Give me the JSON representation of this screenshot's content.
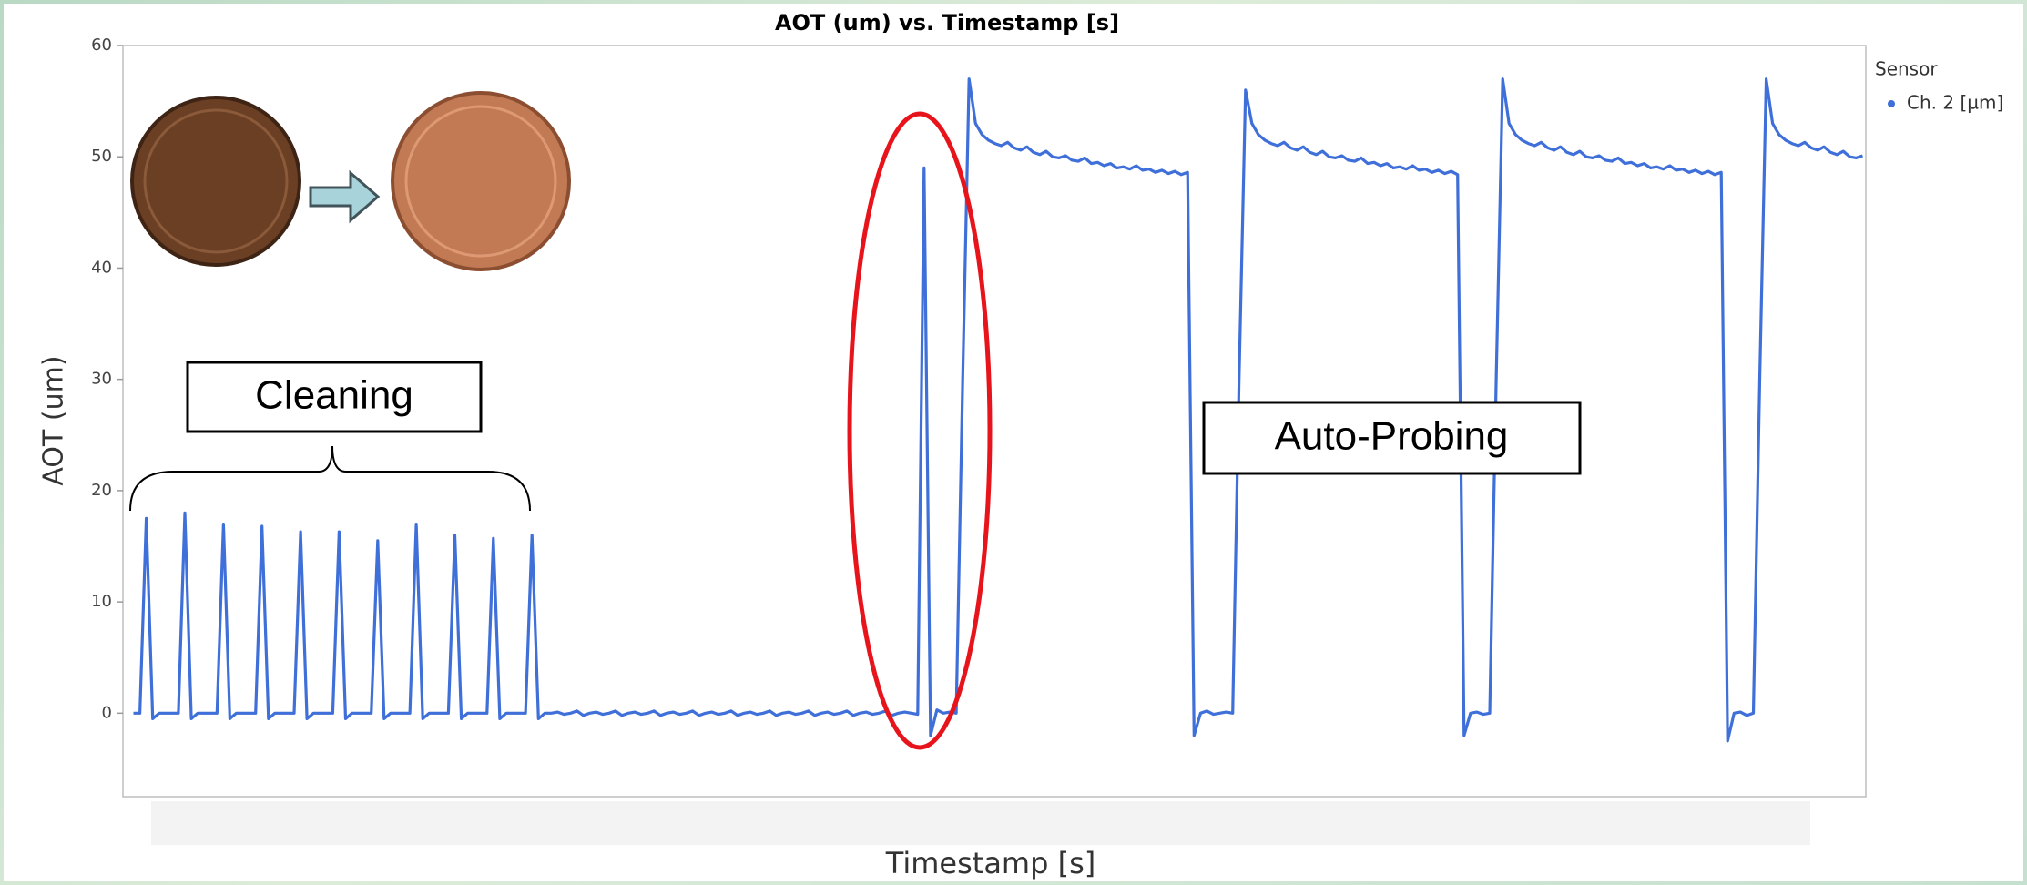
{
  "chart_data": {
    "type": "line",
    "title": "AOT (um) vs. Timestamp [s]",
    "x_label": "Timestamp [s]",
    "y_label": "AOT (um)",
    "legend_title": "Sensor",
    "legend": "top-right",
    "grid": false,
    "ylim": [
      -7.5,
      60
    ],
    "yticks": [
      0,
      10,
      20,
      30,
      40,
      50,
      60
    ],
    "annotations": [
      "Cleaning",
      "Auto-Probing"
    ],
    "series": [
      {
        "name": "Ch. 2 [µm]",
        "color": "#3f6fd8",
        "values": [
          0,
          0,
          17.5,
          -0.5,
          0,
          0,
          0,
          0,
          18,
          -0.5,
          0,
          0,
          0,
          0,
          17,
          -0.5,
          0,
          0,
          0,
          0,
          16.8,
          -0.5,
          0,
          0,
          0,
          0,
          16.3,
          -0.5,
          0,
          0,
          0,
          0,
          16.3,
          -0.5,
          0,
          0,
          0,
          0,
          15.5,
          -0.5,
          0,
          0,
          0,
          0,
          17,
          -0.5,
          0,
          0,
          0,
          0,
          16,
          -0.5,
          0,
          0,
          0,
          0,
          15.7,
          -0.5,
          0,
          0,
          0,
          0,
          16,
          -0.5,
          0,
          0,
          0.1,
          -0.1,
          0,
          0.2,
          -0.2,
          0,
          0.1,
          -0.1,
          0,
          0.2,
          -0.2,
          0,
          0.1,
          -0.1,
          0,
          0.2,
          -0.2,
          0,
          0.1,
          -0.1,
          0,
          0.2,
          -0.2,
          0,
          0.1,
          -0.1,
          0,
          0.2,
          -0.2,
          0,
          0.1,
          -0.1,
          0,
          0.2,
          -0.2,
          0,
          0.1,
          -0.1,
          0,
          0.2,
          -0.2,
          0,
          0.1,
          -0.1,
          0,
          0.2,
          -0.2,
          0,
          0.1,
          -0.1,
          0,
          0.2,
          -0.2,
          0,
          0.1,
          0,
          -0.1,
          49,
          -2,
          0.3,
          0,
          0.1,
          0,
          30,
          57,
          53,
          52,
          51.5,
          51.2,
          51,
          51.3,
          50.8,
          50.6,
          50.9,
          50.4,
          50.2,
          50.5,
          50,
          49.9,
          50.1,
          49.7,
          49.6,
          49.9,
          49.4,
          49.5,
          49.2,
          49.4,
          49,
          49.1,
          48.9,
          49.2,
          48.8,
          48.9,
          48.6,
          48.8,
          48.5,
          48.7,
          48.4,
          48.6,
          -2,
          0,
          0.2,
          -0.1,
          0,
          0.1,
          0,
          30,
          56,
          53,
          52,
          51.5,
          51.2,
          51,
          51.3,
          50.8,
          50.6,
          50.9,
          50.4,
          50.2,
          50.5,
          50,
          49.9,
          50.1,
          49.7,
          49.6,
          49.9,
          49.4,
          49.5,
          49.2,
          49.4,
          49,
          49.1,
          48.9,
          49.2,
          48.8,
          48.9,
          48.6,
          48.8,
          48.5,
          48.7,
          48.4,
          -2,
          0,
          0.1,
          -0.1,
          0,
          30,
          57,
          53,
          52,
          51.5,
          51.2,
          51,
          51.3,
          50.8,
          50.6,
          50.9,
          50.4,
          50.2,
          50.5,
          50,
          49.9,
          50.1,
          49.7,
          49.6,
          49.9,
          49.4,
          49.5,
          49.2,
          49.4,
          49,
          49.1,
          48.9,
          49.2,
          48.8,
          48.9,
          48.6,
          48.8,
          48.5,
          48.7,
          48.4,
          48.6,
          -2.5,
          0,
          0.1,
          -0.2,
          0,
          30,
          57,
          53,
          52,
          51.5,
          51.2,
          51,
          51.3,
          50.8,
          50.6,
          50.9,
          50.4,
          50.2,
          50.5,
          50,
          49.9,
          50.1
        ]
      }
    ]
  }
}
